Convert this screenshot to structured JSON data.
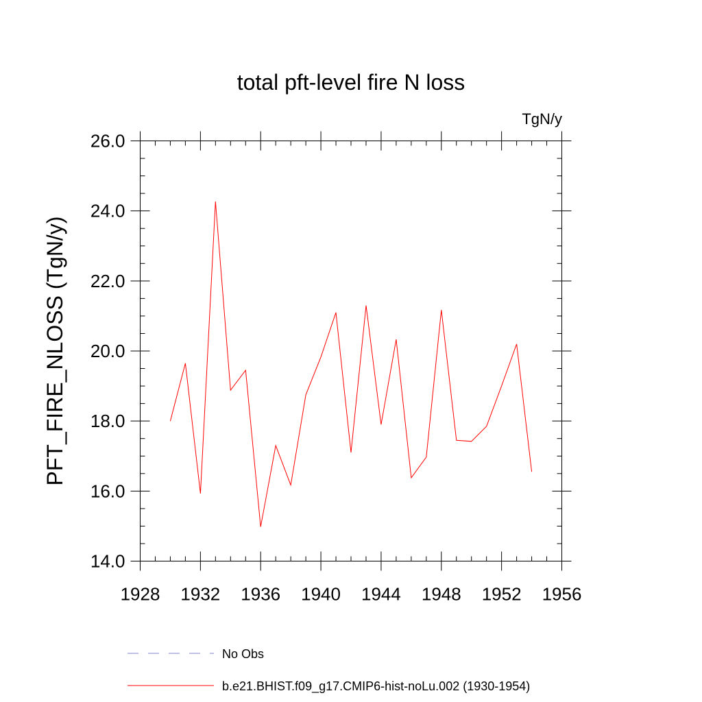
{
  "colors": {
    "model_line": "#ff0000",
    "obs_line": "#8080cc",
    "axis": "#000000",
    "background": "#ffffff"
  },
  "chart_data": {
    "type": "line",
    "title": "total pft-level fire N loss",
    "units_label": "TgN/y",
    "ylabel": "PFT_FIRE_NLOSS  (TgN/y)",
    "xlabel": "",
    "xlim": [
      1928,
      1956
    ],
    "ylim": [
      14.0,
      26.0
    ],
    "x_ticks": [
      1928,
      1932,
      1936,
      1940,
      1944,
      1948,
      1952,
      1956
    ],
    "x_tick_labels": [
      "1928",
      "1932",
      "1936",
      "1940",
      "1944",
      "1948",
      "1952",
      "1956"
    ],
    "y_ticks": [
      14,
      16,
      18,
      20,
      22,
      24,
      26
    ],
    "y_tick_labels": [
      "14.0",
      "16.0",
      "18.0",
      "20.0",
      "22.0",
      "24.0",
      "26.0"
    ],
    "grid": false,
    "legend_position": "bottom",
    "legend": [
      {
        "label": "No Obs",
        "style": "dashed",
        "color": "#8080cc"
      },
      {
        "label": "b.e21.BHIST.f09_g17.CMIP6-hist-noLu.002 (1930-1954)",
        "style": "solid",
        "color": "#ff0000"
      }
    ],
    "series": [
      {
        "name": "b.e21.BHIST.f09_g17.CMIP6-hist-noLu.002 (1930-1954)",
        "x": [
          1930,
          1931,
          1932,
          1933,
          1934,
          1935,
          1936,
          1937,
          1938,
          1939,
          1940,
          1941,
          1942,
          1943,
          1944,
          1945,
          1946,
          1947,
          1948,
          1949,
          1950,
          1951,
          1952,
          1953,
          1954
        ],
        "y": [
          18.0,
          19.65,
          15.93,
          24.27,
          18.88,
          19.45,
          14.98,
          17.3,
          16.17,
          18.75,
          19.83,
          21.1,
          17.1,
          21.3,
          17.9,
          20.33,
          16.38,
          16.97,
          21.17,
          17.45,
          17.42,
          17.85,
          19.0,
          20.2,
          16.55
        ]
      }
    ]
  }
}
